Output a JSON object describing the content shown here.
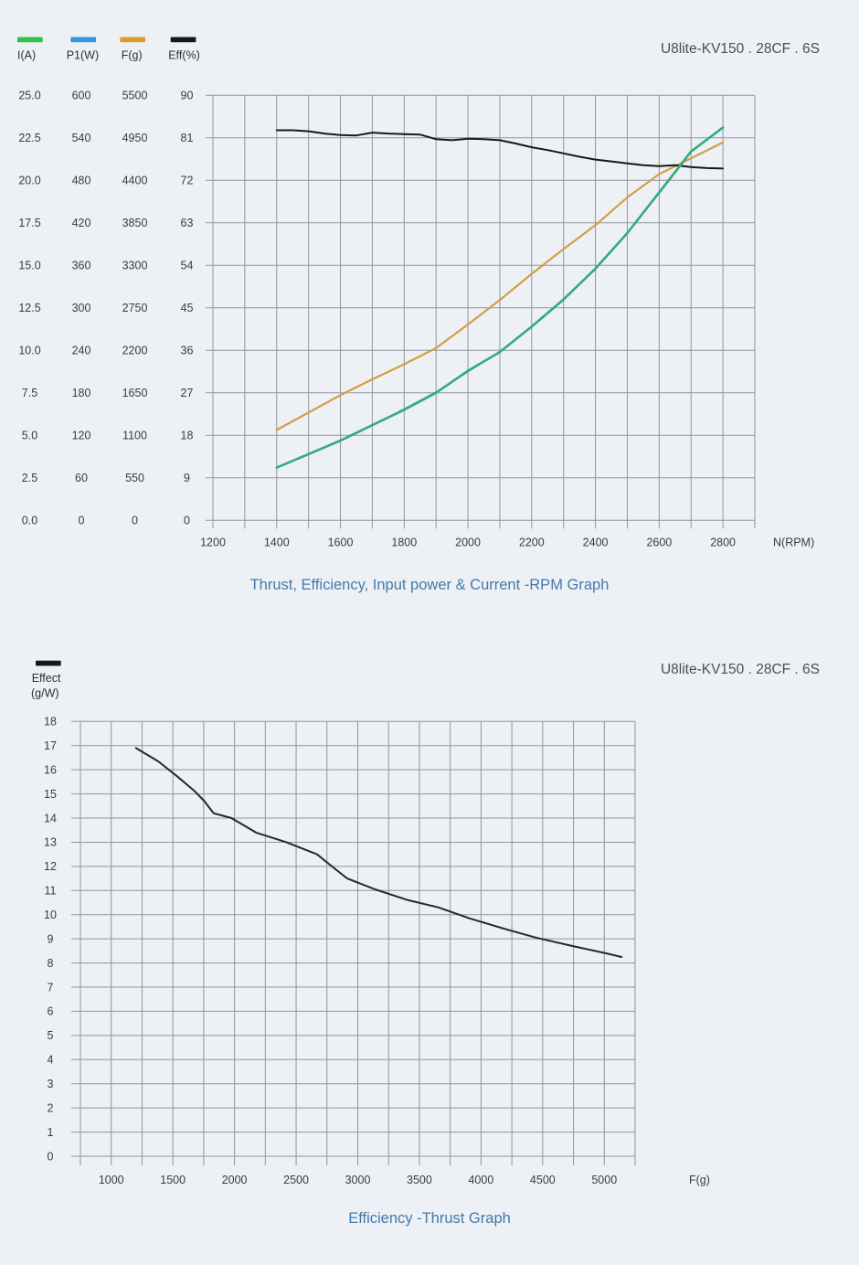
{
  "page": {
    "background": "#edf1f6",
    "grid_color": "#8f95a0",
    "tick_text_color": "#3a3a3c",
    "legend_text_color": "#2e2e30",
    "caption_color": "#4579ab",
    "title_color": "#4e4e52"
  },
  "chart_data": [
    {
      "type": "line",
      "title": "U8lite-KV150 . 28CF . 6S",
      "caption": "Thrust, Efficiency, Input power & Current -RPM Graph",
      "xlabel": "N(RPM)",
      "x_range": [
        1200,
        2900
      ],
      "x_grid_step": 100,
      "x_ticks": [
        "1200",
        "1400",
        "1600",
        "1800",
        "2000",
        "2200",
        "2400",
        "2600",
        "2800"
      ],
      "grid": true,
      "legend_position": "top-left",
      "axes": [
        {
          "label": "I(A)",
          "color": "#31c24e",
          "range": [
            0,
            25
          ],
          "ticks": [
            "25.0",
            "22.5",
            "20.0",
            "17.5",
            "15.0",
            "12.5",
            "10.0",
            "7.5",
            "5.0",
            "2.5",
            "0.0"
          ]
        },
        {
          "label": "P1(W)",
          "color": "#3598d8",
          "range": [
            0,
            600
          ],
          "ticks": [
            "600",
            "540",
            "480",
            "420",
            "360",
            "300",
            "240",
            "180",
            "120",
            "60",
            "0"
          ]
        },
        {
          "label": "F(g)",
          "color": "#dd9b31",
          "range": [
            0,
            5500
          ],
          "ticks": [
            "5500",
            "4950",
            "4400",
            "3850",
            "3300",
            "2750",
            "2200",
            "1650",
            "1100",
            "550",
            "0"
          ]
        },
        {
          "label": "Eff(%)",
          "color": "#17181a",
          "range": [
            0,
            90
          ],
          "ticks": [
            "90",
            "81",
            "72",
            "63",
            "54",
            "45",
            "36",
            "27",
            "18",
            "9",
            "0"
          ]
        }
      ],
      "series": [
        {
          "name": "I(A)",
          "axis": 0,
          "color": "#31c24e",
          "x": [
            1400,
            1500,
            1600,
            1700,
            1800,
            1900,
            2000,
            2100,
            2200,
            2300,
            2400,
            2500,
            2600,
            2700,
            2800
          ],
          "values": [
            3.1,
            3.9,
            4.7,
            5.6,
            6.5,
            7.5,
            8.8,
            9.9,
            11.4,
            13.0,
            14.8,
            16.9,
            19.3,
            21.7,
            23.1
          ]
        },
        {
          "name": "P1(W)",
          "axis": 1,
          "color": "#3598d8",
          "curve_color": "#38a09b",
          "note": "overlaps I(A) curve at 24V, renders teal",
          "x": [
            1400,
            1500,
            1600,
            1700,
            1800,
            1900,
            2000,
            2100,
            2200,
            2300,
            2400,
            2500,
            2600,
            2700,
            2800
          ],
          "values": [
            74,
            93,
            112,
            134,
            157,
            181,
            210,
            238,
            273,
            311,
            356,
            406,
            462,
            520,
            555
          ]
        },
        {
          "name": "F(g)",
          "axis": 2,
          "color": "#dd9b31",
          "curve_color": "#d49e43",
          "x": [
            1400,
            1500,
            1600,
            1700,
            1800,
            1900,
            2000,
            2100,
            2200,
            2300,
            2400,
            2500,
            2600,
            2700,
            2800
          ],
          "values": [
            1170,
            1395,
            1620,
            1825,
            2020,
            2230,
            2535,
            2850,
            3190,
            3510,
            3820,
            4180,
            4480,
            4685,
            4890
          ]
        },
        {
          "name": "Eff(%)",
          "axis": 3,
          "color": "#17181a",
          "x": [
            1400,
            1450,
            1500,
            1550,
            1600,
            1650,
            1700,
            1750,
            1800,
            1850,
            1900,
            1950,
            2000,
            2050,
            2100,
            2150,
            2200,
            2250,
            2300,
            2350,
            2400,
            2450,
            2500,
            2550,
            2600,
            2650,
            2700,
            2750,
            2800
          ],
          "values": [
            82.6,
            82.6,
            82.4,
            81.9,
            81.6,
            81.5,
            82.1,
            81.9,
            81.8,
            81.7,
            80.7,
            80.5,
            80.8,
            80.7,
            80.5,
            79.8,
            79.0,
            78.4,
            77.7,
            77.0,
            76.4,
            76.0,
            75.6,
            75.2,
            75.0,
            75.2,
            74.8,
            74.6,
            74.5
          ]
        }
      ]
    },
    {
      "type": "line",
      "title": "U8lite-KV150 . 28CF . 6S",
      "caption": "Efficiency -Thrust Graph",
      "xlabel": "F(g)",
      "legend": {
        "label": "Effect",
        "unit": "(g/W)",
        "color": "#17181a"
      },
      "x_range": [
        750,
        5250
      ],
      "x_grid_step": 250,
      "x_ticks": [
        "1000",
        "1500",
        "2000",
        "2500",
        "3000",
        "3500",
        "4000",
        "4500",
        "5000"
      ],
      "y_range": [
        0,
        18
      ],
      "y_ticks": [
        "18",
        "17",
        "16",
        "15",
        "14",
        "13",
        "12",
        "11",
        "10",
        "9",
        "8",
        "7",
        "6",
        "5",
        "4",
        "3",
        "2",
        "1",
        "0"
      ],
      "grid": true,
      "legend_position": "top-left",
      "series": [
        {
          "name": "Effect (g/W)",
          "color": "#26272a",
          "x": [
            1200,
            1380,
            1530,
            1680,
            1755,
            1830,
            1975,
            2075,
            2175,
            2420,
            2670,
            2790,
            2915,
            3140,
            3410,
            3655,
            3905,
            4200,
            4445,
            4745,
            5015,
            5140
          ],
          "values": [
            16.9,
            16.35,
            15.75,
            15.1,
            14.7,
            14.2,
            14.0,
            13.7,
            13.4,
            13.0,
            12.5,
            12.0,
            11.5,
            11.05,
            10.6,
            10.3,
            9.85,
            9.4,
            9.05,
            8.7,
            8.4,
            8.25
          ]
        }
      ]
    }
  ]
}
